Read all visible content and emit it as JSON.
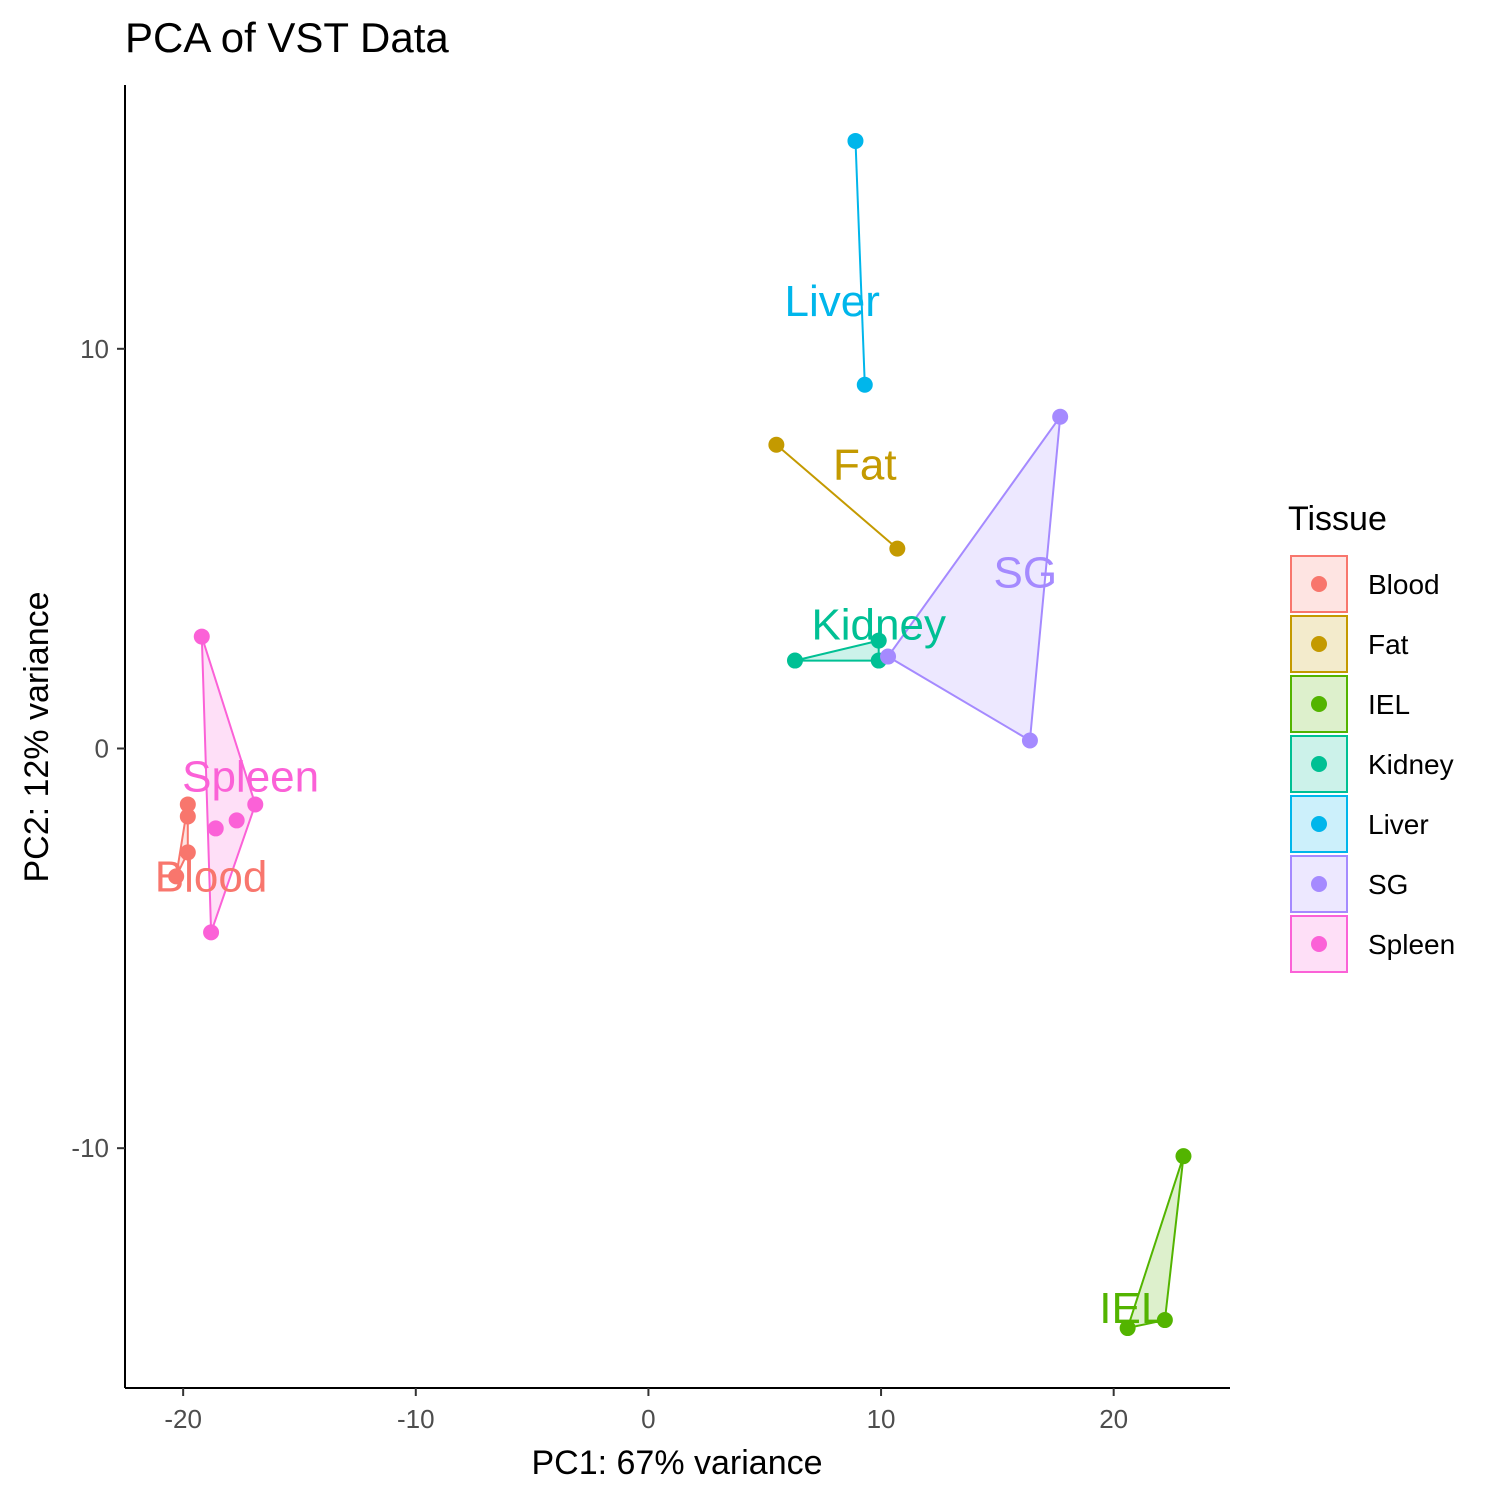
{
  "chart_data": {
    "type": "scatter",
    "title": "PCA of VST Data",
    "xlabel": "PC1: 67% variance",
    "ylabel": "PC2: 12% variance",
    "xlim": [
      -22.5,
      25
    ],
    "ylim": [
      -16,
      16.6
    ],
    "x_ticks": [
      -20,
      -10,
      0,
      10,
      20
    ],
    "y_ticks": [
      -10,
      0,
      10
    ],
    "grid": false,
    "legend": {
      "title": "Tissue",
      "placement": "right"
    },
    "series": [
      {
        "name": "Blood",
        "color": "#F8766D",
        "points": [
          [
            -19.8,
            -1.4
          ],
          [
            -19.8,
            -1.7
          ],
          [
            -19.8,
            -2.6
          ],
          [
            -20.3,
            -3.2
          ]
        ],
        "label_pos": [
          -18.8,
          -3.2
        ]
      },
      {
        "name": "Fat",
        "color": "#C49A00",
        "points": [
          [
            5.5,
            7.6
          ],
          [
            10.7,
            5.0
          ]
        ],
        "label_pos": [
          9.3,
          7.1
        ]
      },
      {
        "name": "IEL",
        "color": "#53B400",
        "points": [
          [
            23.0,
            -10.2
          ],
          [
            22.2,
            -14.3
          ],
          [
            20.6,
            -14.5
          ]
        ],
        "label_pos": [
          20.8,
          -14.0
        ]
      },
      {
        "name": "Kidney",
        "color": "#00C094",
        "points": [
          [
            6.3,
            2.2
          ],
          [
            9.9,
            2.7
          ],
          [
            9.9,
            2.2
          ]
        ],
        "label_pos": [
          9.9,
          3.1
        ]
      },
      {
        "name": "Liver",
        "color": "#00B6EB",
        "points": [
          [
            8.9,
            15.2
          ],
          [
            9.3,
            9.1
          ]
        ],
        "label_pos": [
          7.9,
          11.2
        ]
      },
      {
        "name": "SG",
        "color": "#A58AFF",
        "points": [
          [
            17.7,
            8.3
          ],
          [
            10.3,
            2.3
          ],
          [
            16.4,
            0.2
          ]
        ],
        "label_pos": [
          16.2,
          4.4
        ]
      },
      {
        "name": "Spleen",
        "color": "#FB61D7",
        "points": [
          [
            -19.2,
            2.8
          ],
          [
            -16.9,
            -1.4
          ],
          [
            -17.7,
            -1.8
          ],
          [
            -18.6,
            -2.0
          ],
          [
            -18.8,
            -4.6
          ]
        ],
        "label_pos": [
          -17.1,
          -0.7
        ]
      }
    ]
  }
}
